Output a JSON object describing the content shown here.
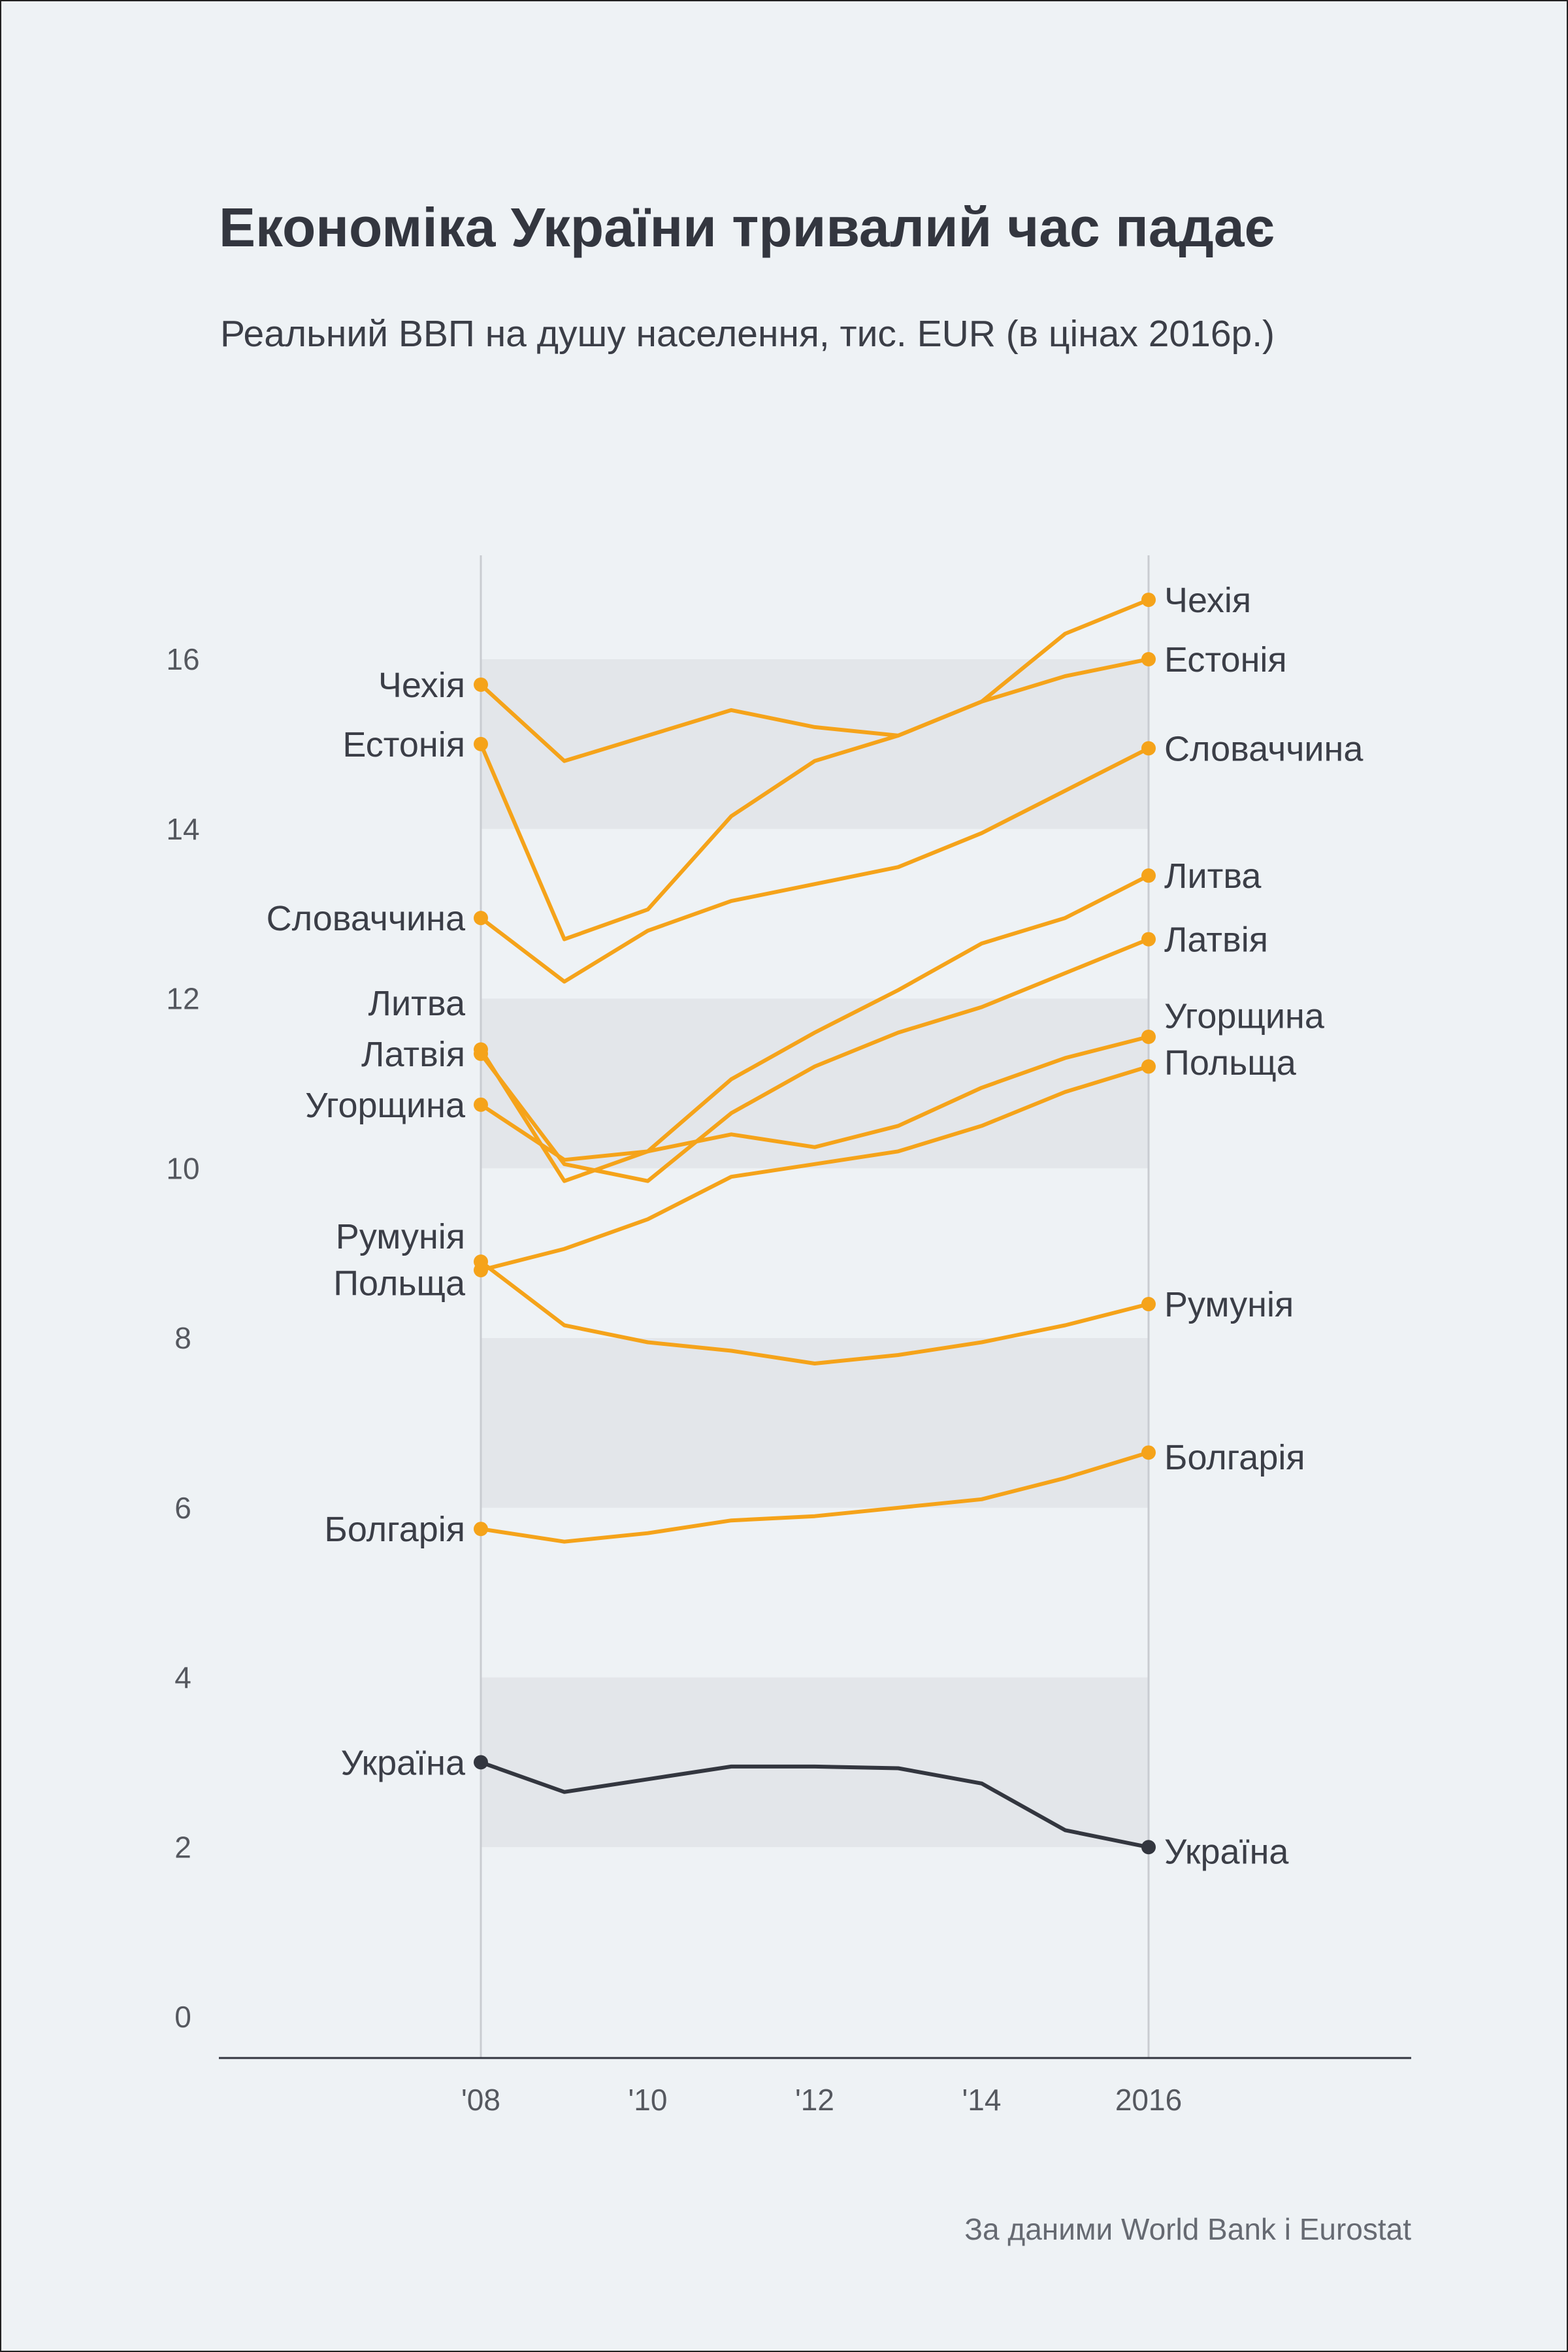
{
  "title": "Економіка України тривалий час падає",
  "subtitle": "Реальний ВВП на душу населення, тис. EUR (в цінах 2016р.)",
  "source": "За даними World Bank і Eurostat",
  "colors": {
    "highlight": "#f5a31a",
    "ukraine": "#33363f",
    "band": "#e3e6ea",
    "background": "#eef2f5",
    "text": "#3b3e47"
  },
  "chart_data": {
    "type": "line",
    "x": [
      2008,
      2009,
      2010,
      2011,
      2012,
      2013,
      2014,
      2015,
      2016
    ],
    "x_ticks": [
      {
        "value": 2008,
        "label": "'08"
      },
      {
        "value": 2010,
        "label": "'10"
      },
      {
        "value": 2012,
        "label": "'12"
      },
      {
        "value": 2014,
        "label": "'14"
      },
      {
        "value": 2016,
        "label": "2016"
      }
    ],
    "y_ticks": [
      0,
      2,
      4,
      6,
      8,
      10,
      12,
      14,
      16
    ],
    "ylim": [
      0,
      17.5
    ],
    "grid": "alternating horizontal bands",
    "legend": "direct labels at line ends",
    "series": [
      {
        "name": "Чехія",
        "color": "highlight",
        "values": [
          15.7,
          14.8,
          15.1,
          15.4,
          15.2,
          15.1,
          15.5,
          16.3,
          16.7
        ]
      },
      {
        "name": "Естонія",
        "color": "highlight",
        "values": [
          15.0,
          12.7,
          13.05,
          14.15,
          14.8,
          15.1,
          15.5,
          15.8,
          16.0
        ]
      },
      {
        "name": "Словаччина",
        "color": "highlight",
        "values": [
          12.95,
          12.2,
          12.8,
          13.15,
          13.35,
          13.55,
          13.95,
          14.45,
          14.95
        ]
      },
      {
        "name": "Литва",
        "color": "highlight",
        "values": [
          11.4,
          9.85,
          10.2,
          11.05,
          11.6,
          12.1,
          12.65,
          12.95,
          13.45
        ]
      },
      {
        "name": "Латвія",
        "color": "highlight",
        "values": [
          11.35,
          10.05,
          9.85,
          10.65,
          11.2,
          11.6,
          11.9,
          12.3,
          12.7
        ]
      },
      {
        "name": "Угорщина",
        "color": "highlight",
        "values": [
          10.75,
          10.1,
          10.2,
          10.4,
          10.25,
          10.5,
          10.95,
          11.3,
          11.55
        ]
      },
      {
        "name": "Польща",
        "color": "highlight",
        "values": [
          8.8,
          9.05,
          9.4,
          9.9,
          10.05,
          10.2,
          10.5,
          10.9,
          11.2
        ]
      },
      {
        "name": "Румунія",
        "color": "highlight",
        "values": [
          8.9,
          8.15,
          7.95,
          7.85,
          7.7,
          7.8,
          7.95,
          8.15,
          8.4
        ]
      },
      {
        "name": "Болгарія",
        "color": "highlight",
        "values": [
          5.75,
          5.6,
          5.7,
          5.85,
          5.9,
          6.0,
          6.1,
          6.35,
          6.65
        ]
      },
      {
        "name": "Україна",
        "color": "ukraine",
        "values": [
          3.0,
          2.65,
          2.8,
          2.95,
          2.95,
          2.93,
          2.75,
          2.2,
          2.0
        ]
      }
    ],
    "labels_left": [
      {
        "text": "Чехія",
        "y": 15.7
      },
      {
        "text": "Естонія",
        "y": 15.0
      },
      {
        "text": "Словаччина",
        "y": 12.95
      },
      {
        "text": "Литва",
        "y": 11.95
      },
      {
        "text": "Латвія",
        "y": 11.35
      },
      {
        "text": "Угорщина",
        "y": 10.75
      },
      {
        "text": "Румунія",
        "y": 9.2
      },
      {
        "text": "Польща",
        "y": 8.65
      },
      {
        "text": "Болгарія",
        "y": 5.75
      },
      {
        "text": "Україна",
        "y": 3.0
      }
    ],
    "labels_right": [
      {
        "text": "Чехія",
        "y": 16.7
      },
      {
        "text": "Естонія",
        "y": 16.0
      },
      {
        "text": "Словаччина",
        "y": 14.95
      },
      {
        "text": "Литва",
        "y": 13.45
      },
      {
        "text": "Латвія",
        "y": 12.7
      },
      {
        "text": "Угорщина",
        "y": 11.8
      },
      {
        "text": "Польща",
        "y": 11.25
      },
      {
        "text": "Румунія",
        "y": 8.4
      },
      {
        "text": "Болгарія",
        "y": 6.6
      },
      {
        "text": "Україна",
        "y": 1.95
      }
    ]
  }
}
